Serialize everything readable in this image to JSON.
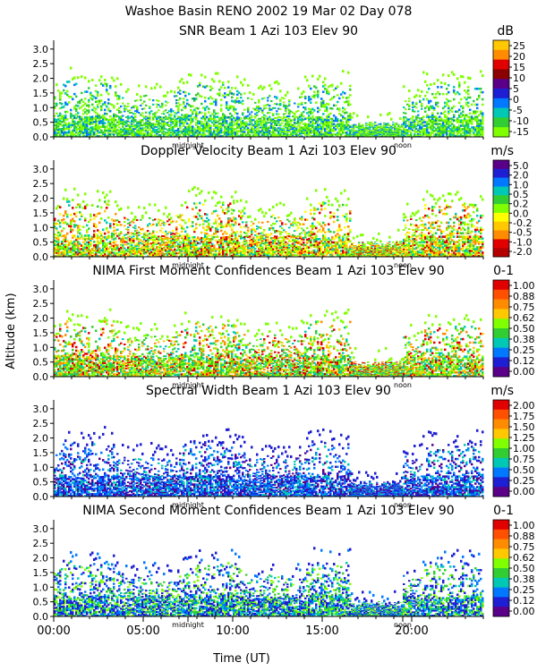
{
  "figure": {
    "title": "Washoe Basin RENO 2002  19 Mar 02 Day 078",
    "xlabel": "Time (UT)",
    "ylabel": "Altitude (km)",
    "x_ticks": [
      "00:00",
      "05:00",
      "10:00",
      "15:00",
      "20:00"
    ],
    "y_ticks": [
      "0.0",
      "0.5",
      "1.0",
      "1.5",
      "2.0",
      "2.5",
      "3.0"
    ],
    "marker_midnight": "midnight",
    "marker_noon": "noon"
  },
  "chart_data": [
    {
      "type": "heatmap",
      "title": "SNR Beam 1 Azi 103 Elev 90",
      "unit": "dB",
      "colorbar_ticks": [
        "25",
        "20",
        "15",
        "10",
        "5",
        "0",
        "-5",
        "-10",
        "-15"
      ],
      "colorbar_colors": [
        "#ffc800",
        "#ff8c00",
        "#e00000",
        "#8b0000",
        "#5a0088",
        "#1e1ed2",
        "#0078ff",
        "#00c8b4",
        "#32cd32",
        "#80ff00"
      ],
      "x_range_hours": [
        0,
        24
      ],
      "y_range_km": [
        0.0,
        3.3
      ],
      "cloud_top_km": 1.7,
      "dominant": "green"
    },
    {
      "type": "heatmap",
      "title": "Doppler Velocity Beam 1 Azi 103 Elev 90",
      "unit": "m/s",
      "colorbar_ticks": [
        "5.0",
        "2.0",
        "1.0",
        "0.5",
        "0.2",
        "0.0",
        "-0.2",
        "-0.5",
        "-1.0",
        "-2.0"
      ],
      "colorbar_colors": [
        "#5a0088",
        "#1e1ed2",
        "#0078ff",
        "#00c8b4",
        "#32cd32",
        "#80ff00",
        "#ffff00",
        "#ffc800",
        "#ff8c00",
        "#e00000",
        "#b40000"
      ],
      "x_range_hours": [
        0,
        24
      ],
      "y_range_km": [
        0.0,
        3.3
      ],
      "dominant": "green-orange"
    },
    {
      "type": "heatmap",
      "title": "NIMA First Moment Confidences Beam 1 Azi 103 Elev 90",
      "unit": "0-1",
      "colorbar_ticks": [
        "1.00",
        "0.88",
        "0.75",
        "0.62",
        "0.50",
        "0.38",
        "0.25",
        "0.12",
        "0.00"
      ],
      "colorbar_colors": [
        "#e00000",
        "#ff5000",
        "#ff8c00",
        "#ffc800",
        "#80ff00",
        "#32cd32",
        "#00c8b4",
        "#0078ff",
        "#1e1ed2",
        "#5a0088"
      ],
      "x_range_hours": [
        0,
        24
      ],
      "y_range_km": [
        0.0,
        3.3
      ],
      "dominant": "green-red"
    },
    {
      "type": "heatmap",
      "title": "Spectral Width Beam 1 Azi 103 Elev 90",
      "unit": "m/s",
      "colorbar_ticks": [
        "2.00",
        "1.75",
        "1.50",
        "1.25",
        "1.00",
        "0.75",
        "0.50",
        "0.25",
        "0.00"
      ],
      "colorbar_colors": [
        "#e00000",
        "#ff5000",
        "#ff8c00",
        "#ffc800",
        "#80ff00",
        "#32cd32",
        "#00c8b4",
        "#0078ff",
        "#1e1ed2",
        "#5a0088"
      ],
      "x_range_hours": [
        0,
        24
      ],
      "y_range_km": [
        0.0,
        3.3
      ],
      "dominant": "blue"
    },
    {
      "type": "heatmap",
      "title": "NIMA Second Moment Confidences Beam 1 Azi 103 Elev 90",
      "unit": "0-1",
      "colorbar_ticks": [
        "1.00",
        "0.88",
        "0.75",
        "0.62",
        "0.50",
        "0.38",
        "0.25",
        "0.12",
        "0.00"
      ],
      "colorbar_colors": [
        "#e00000",
        "#ff5000",
        "#ff8c00",
        "#ffc800",
        "#80ff00",
        "#32cd32",
        "#00c8b4",
        "#0078ff",
        "#1e1ed2",
        "#5a0088"
      ],
      "x_range_hours": [
        0,
        24
      ],
      "y_range_km": [
        0.0,
        3.3
      ],
      "dominant": "blue-green"
    }
  ]
}
